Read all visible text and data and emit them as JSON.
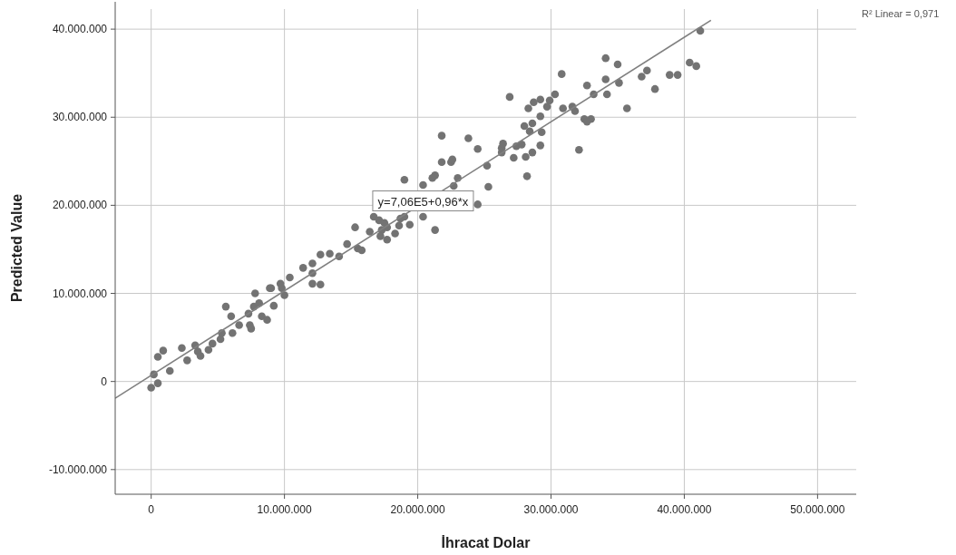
{
  "chart_data": {
    "type": "scatter",
    "xlabel": "İhracat Dolar",
    "ylabel": "Predicted Value",
    "xlim": [
      -2700000,
      52900000
    ],
    "ylim": [
      -12800000,
      43100000
    ],
    "xticks": [
      0,
      {
        "value": 10000000,
        "label": "10.000.000"
      },
      {
        "value": 20000000,
        "label": "20.000.000"
      },
      {
        "value": 30000000,
        "label": "30.000.000"
      },
      {
        "value": 40000000,
        "label": "40.000.000"
      },
      {
        "value": 50000000,
        "label": "50.000.000"
      }
    ],
    "yticks": [
      {
        "value": -10000000,
        "label": "-10.000.000"
      },
      0,
      {
        "value": 10000000,
        "label": "10.000.000"
      },
      {
        "value": 20000000,
        "label": "20.000.000"
      },
      {
        "value": 30000000,
        "label": "30.000.000"
      },
      {
        "value": 40000000,
        "label": "40.000.000"
      }
    ],
    "grid": true,
    "annotations": [
      {
        "text": "y=7,06E5+0,96*x",
        "x": 20400000,
        "y": 20500000
      },
      "R² Linear = 0,971"
    ],
    "series": [
      {
        "color": "#737373",
        "x": [
          0,
          500000,
          200000,
          1400000,
          500000,
          900000,
          2300000,
          2700000,
          3300000,
          3500000,
          3700000,
          4300000,
          4600000,
          5200000,
          5300000,
          5600000,
          6000000,
          6100000,
          6600000,
          7300000,
          7400000,
          7500000,
          7800000,
          7700000,
          8100000,
          8300000,
          8700000,
          9000000,
          9200000,
          9700000,
          10000000,
          10400000,
          11400000,
          12100000,
          12100000,
          12100000,
          12700000,
          12700000,
          13400000,
          14100000,
          14700000,
          15300000,
          15500000,
          15800000,
          16400000,
          16700000,
          17100000,
          17500000,
          17700000,
          17300000,
          17700000,
          17200000,
          18300000,
          18600000,
          18700000,
          19000000,
          19400000,
          20400000,
          21300000,
          19000000,
          20400000,
          21300000,
          21100000,
          21800000,
          21800000,
          22500000,
          22600000,
          23000000,
          22700000,
          23800000,
          24500000,
          25200000,
          25300000,
          26300000,
          26300000,
          24500000,
          26400000,
          27200000,
          27400000,
          27800000,
          28100000,
          28600000,
          29200000,
          29300000,
          28400000,
          28000000,
          28600000,
          29200000,
          28300000,
          28700000,
          29200000,
          26900000,
          28200000,
          29700000,
          29900000,
          30300000,
          30800000,
          30900000,
          31600000,
          31800000,
          32500000,
          33000000,
          32700000,
          32100000,
          32700000,
          33200000,
          34100000,
          35000000,
          34100000,
          34200000,
          35100000,
          35700000,
          36800000,
          37200000,
          37800000,
          38900000,
          39500000,
          40400000,
          40900000,
          41200000,
          8900000,
          9800000
        ],
        "values": [
          -700000,
          -200000,
          800000,
          1200000,
          2800000,
          3500000,
          3800000,
          2400000,
          4100000,
          3400000,
          2900000,
          3600000,
          4300000,
          4800000,
          5500000,
          8500000,
          7400000,
          5500000,
          6400000,
          7700000,
          6400000,
          6000000,
          10000000,
          8500000,
          8900000,
          7400000,
          7000000,
          10600000,
          8600000,
          11100000,
          9800000,
          11800000,
          12900000,
          13400000,
          12300000,
          11100000,
          11000000,
          14400000,
          14500000,
          14200000,
          15600000,
          17500000,
          15100000,
          14900000,
          17000000,
          18700000,
          18300000,
          18000000,
          17500000,
          17200000,
          16100000,
          16500000,
          16800000,
          17700000,
          18500000,
          18700000,
          17800000,
          18700000,
          17200000,
          22900000,
          22300000,
          23400000,
          23100000,
          27900000,
          24900000,
          24900000,
          25200000,
          23100000,
          22200000,
          27600000,
          26400000,
          24500000,
          22100000,
          26500000,
          26000000,
          20100000,
          27000000,
          25400000,
          26700000,
          26900000,
          25500000,
          26000000,
          26800000,
          28300000,
          28400000,
          29000000,
          29300000,
          30100000,
          31000000,
          31700000,
          32000000,
          32300000,
          23300000,
          31200000,
          31900000,
          32600000,
          34900000,
          31000000,
          31200000,
          30700000,
          29800000,
          29800000,
          29500000,
          26300000,
          33600000,
          32600000,
          36700000,
          36000000,
          34300000,
          32600000,
          33900000,
          31000000,
          34600000,
          35300000,
          33200000,
          34800000,
          34800000,
          36200000,
          35800000,
          39800000,
          10600000,
          10600000
        ]
      },
      {
        "type": "line",
        "color": "#808080",
        "x": [
          -2700000,
          42000000
        ],
        "values": [
          -1900000,
          41000000
        ]
      }
    ]
  }
}
